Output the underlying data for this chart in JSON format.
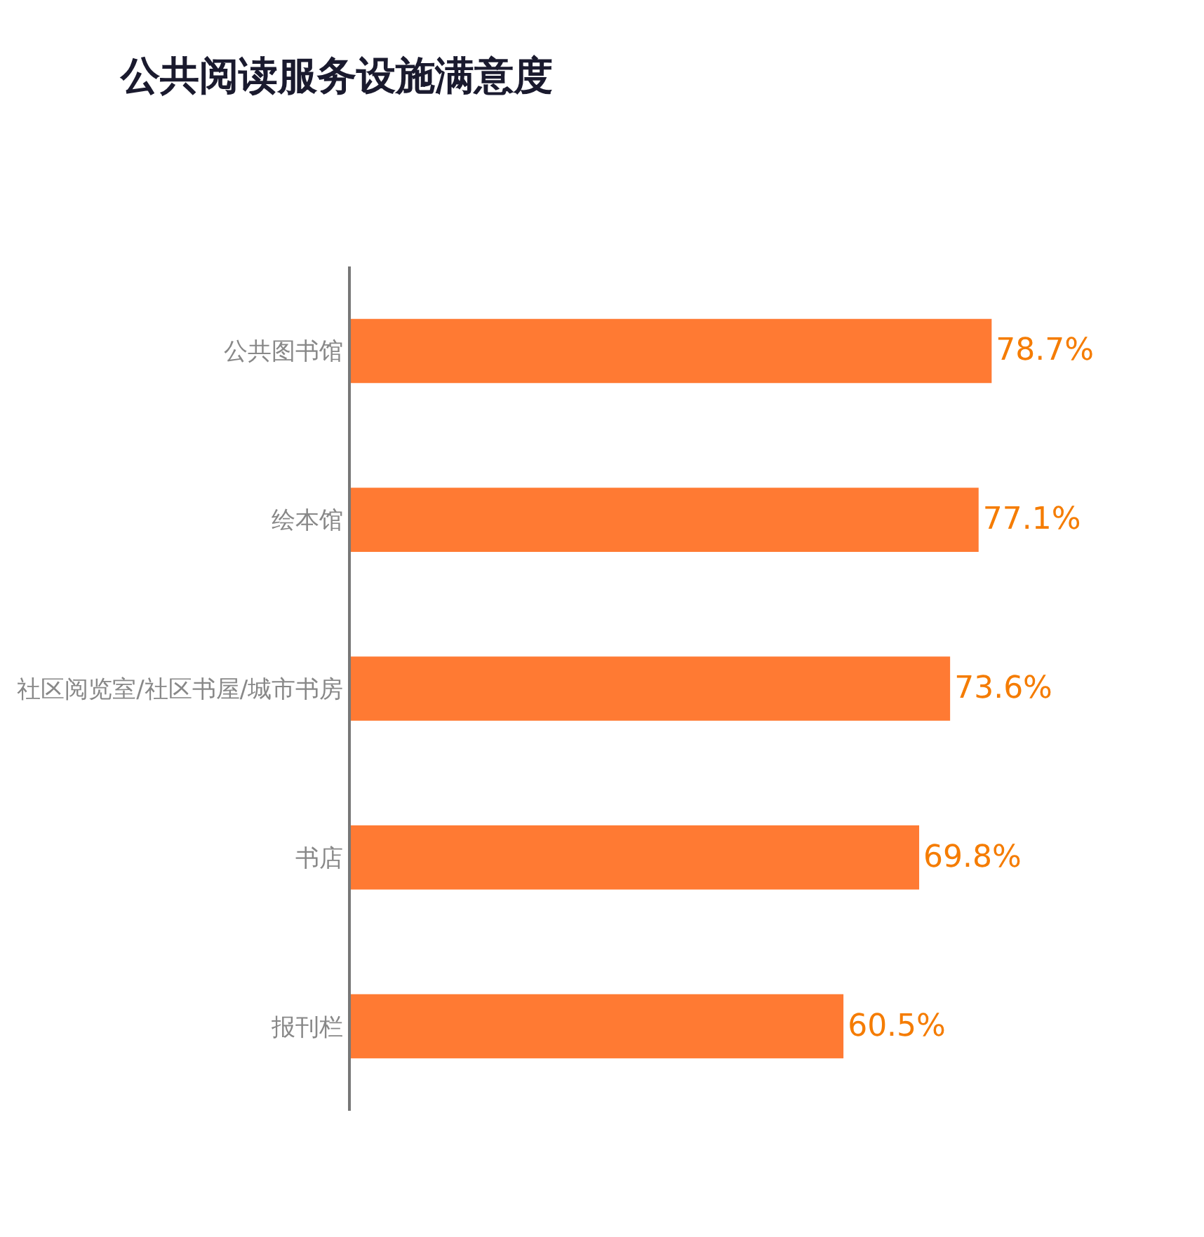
{
  "chart_data": {
    "type": "bar",
    "orientation": "horizontal",
    "title": "公共阅读服务设施满意度",
    "categories": [
      "公共图书馆",
      "绘本馆",
      "社区阅览室/社区书屋/城市书房",
      "书店",
      "报刊栏"
    ],
    "values": [
      78.7,
      77.1,
      73.6,
      69.8,
      60.5
    ],
    "value_labels": [
      "78.7%",
      "77.1%",
      "73.6%",
      "69.8%",
      "60.5%"
    ],
    "color": "#ff7a33"
  }
}
